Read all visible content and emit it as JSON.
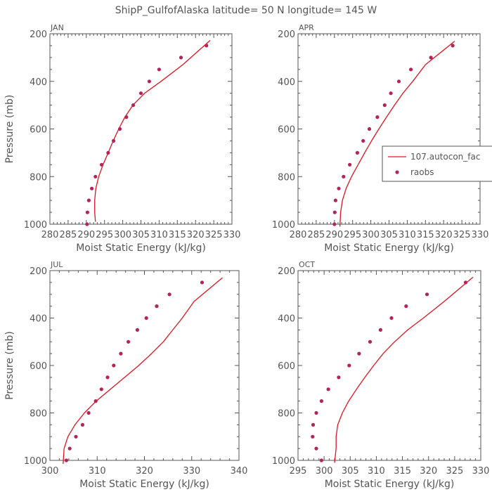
{
  "figure_title": "ShipP_GulfofAlaska   latitude= 50 N longitude= 145 W",
  "colors": {
    "model_line": "#e0141e",
    "raobs": "#b3245a",
    "axis": "#555555"
  },
  "legend": {
    "line_label": "107.autocon_fac",
    "marker_label": "raobs"
  },
  "chart_data": [
    {
      "type": "line",
      "panel": "JAN",
      "xlabel": "Moist Static Energy (kJ/kg)",
      "ylabel": "Pressure (mb)",
      "xlim": [
        280,
        330
      ],
      "ylim": [
        1000,
        200
      ],
      "xticks": [
        280,
        285,
        290,
        295,
        300,
        305,
        310,
        315,
        320,
        325,
        330
      ],
      "yticks": [
        200,
        400,
        600,
        800,
        1000
      ],
      "series": [
        {
          "name": "107.autocon_fac",
          "kind": "line",
          "x": [
            292.5,
            292.3,
            292.3,
            292.6,
            293.4,
            294.6,
            296.0,
            297.4,
            298.9,
            300.6,
            302.8,
            306.0,
            310.5,
            316.5,
            324.0
          ],
          "y": [
            990,
            950,
            900,
            850,
            800,
            750,
            700,
            650,
            600,
            550,
            500,
            450,
            400,
            330,
            228
          ]
        },
        {
          "name": "raobs",
          "kind": "scatter",
          "x": [
            290.2,
            290.3,
            290.7,
            291.5,
            292.5,
            294.2,
            296.0,
            297.5,
            299.2,
            301.0,
            302.9,
            305.0,
            307.3,
            310.0,
            316.0,
            323.0
          ],
          "y": [
            1000,
            950,
            900,
            850,
            800,
            750,
            700,
            650,
            600,
            550,
            500,
            450,
            400,
            350,
            300,
            250
          ]
        }
      ]
    },
    {
      "type": "line",
      "panel": "APR",
      "xlabel": "Moist Static Energy (kJ/kg)",
      "ylabel": "",
      "xlim": [
        280,
        330
      ],
      "ylim": [
        1000,
        200
      ],
      "xticks": [
        280,
        285,
        290,
        295,
        300,
        305,
        310,
        315,
        320,
        325,
        330
      ],
      "yticks": [
        200,
        400,
        600,
        800,
        1000
      ],
      "series": [
        {
          "name": "107.autocon_fac",
          "kind": "line",
          "x": [
            291.5,
            291.7,
            292.2,
            293.2,
            294.7,
            296.5,
            298.3,
            300.2,
            302.2,
            304.3,
            306.5,
            308.8,
            311.5,
            315.0,
            323.0
          ],
          "y": [
            1010,
            950,
            900,
            850,
            800,
            750,
            700,
            650,
            600,
            550,
            500,
            450,
            400,
            330,
            232
          ]
        },
        {
          "name": "raobs",
          "kind": "scatter",
          "x": [
            290.0,
            290.1,
            290.3,
            291.2,
            292.5,
            294.2,
            296.3,
            297.9,
            299.6,
            301.8,
            303.8,
            305.5,
            307.7,
            311.0,
            316.5,
            322.5
          ],
          "y": [
            1000,
            950,
            900,
            850,
            800,
            750,
            700,
            650,
            600,
            550,
            500,
            450,
            400,
            350,
            300,
            250
          ]
        }
      ]
    },
    {
      "type": "line",
      "panel": "JUL",
      "xlabel": "Moist Static Energy (kJ/kg)",
      "ylabel": "Pressure (mb)",
      "xlim": [
        300,
        340
      ],
      "ylim": [
        1000,
        200
      ],
      "xticks": [
        300,
        310,
        320,
        330,
        340
      ],
      "yticks": [
        200,
        400,
        600,
        800,
        1000
      ],
      "series": [
        {
          "name": "107.autocon_fac",
          "kind": "line",
          "x": [
            302.8,
            303.0,
            303.8,
            305.3,
            307.3,
            309.8,
            312.8,
            315.8,
            318.8,
            321.5,
            324.0,
            326.0,
            328.0,
            330.5,
            336.5
          ],
          "y": [
            1015,
            950,
            900,
            850,
            800,
            750,
            700,
            650,
            600,
            550,
            500,
            450,
            400,
            330,
            230
          ]
        },
        {
          "name": "raobs",
          "kind": "scatter",
          "x": [
            303.5,
            304.2,
            305.5,
            306.9,
            308.2,
            309.7,
            310.9,
            312.2,
            313.5,
            315.0,
            316.6,
            318.5,
            320.4,
            322.6,
            325.3,
            332.2
          ],
          "y": [
            1000,
            950,
            900,
            850,
            800,
            750,
            700,
            650,
            600,
            550,
            500,
            450,
            400,
            350,
            300,
            250
          ]
        }
      ]
    },
    {
      "type": "line",
      "panel": "OCT",
      "xlabel": "Moist Static Energy (kJ/kg)",
      "ylabel": "",
      "xlim": [
        295,
        330
      ],
      "ylim": [
        1000,
        200
      ],
      "xticks": [
        295,
        300,
        305,
        310,
        315,
        320,
        325,
        330
      ],
      "yticks": [
        200,
        400,
        600,
        800,
        1000
      ],
      "series": [
        {
          "name": "107.autocon_fac",
          "kind": "line",
          "x": [
            302.0,
            302.3,
            302.3,
            302.6,
            303.5,
            304.7,
            306.2,
            307.8,
            309.5,
            311.3,
            313.5,
            316.0,
            319.0,
            323.0,
            328.5
          ],
          "y": [
            1010,
            950,
            900,
            850,
            800,
            750,
            700,
            650,
            600,
            550,
            500,
            450,
            400,
            330,
            228
          ]
        },
        {
          "name": "raobs",
          "kind": "scatter",
          "x": [
            299.5,
            298.5,
            297.8,
            297.9,
            298.5,
            299.5,
            300.8,
            302.8,
            304.8,
            306.7,
            308.8,
            310.8,
            312.9,
            315.7,
            319.7,
            327.1
          ],
          "y": [
            1000,
            950,
            900,
            850,
            800,
            750,
            700,
            650,
            600,
            550,
            500,
            450,
            400,
            350,
            300,
            250
          ]
        }
      ]
    }
  ]
}
